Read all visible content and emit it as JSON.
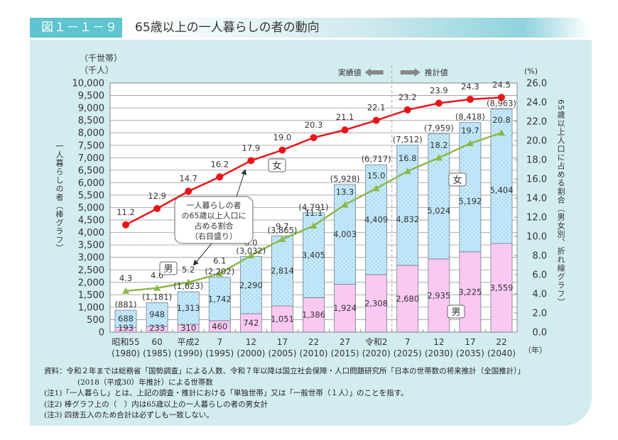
{
  "figure": {
    "number": "図１－１－９",
    "title": "65歳以上の一人暮らしの者の動向"
  },
  "chart_data": {
    "type": "bar",
    "subtype": "stacked-bar-with-lines",
    "title": "65歳以上の一人暮らしの者の動向",
    "left_axis": {
      "unit_labels": [
        "（千世帯）",
        "（千人）"
      ],
      "label": "一人暮らしの者（棒グラフ）",
      "ylim": [
        0,
        10000
      ],
      "ticks": [
        "0",
        "500",
        "1,000",
        "1,500",
        "2,000",
        "2,500",
        "3,000",
        "3,500",
        "4,000",
        "4,500",
        "5,000",
        "5,500",
        "6,000",
        "6,500",
        "7,000",
        "7,500",
        "8,000",
        "8,500",
        "9,000",
        "9,500",
        "10,000"
      ]
    },
    "right_axis": {
      "unit_label": "(%)",
      "label": "65歳以上人口に占める割合（男女別、折れ線グラフ）",
      "ylim": [
        0,
        26
      ],
      "ticks": [
        "0.0",
        "2.0",
        "4.0",
        "6.0",
        "8.0",
        "10.0",
        "12.0",
        "14.0",
        "16.0",
        "18.0",
        "20.0",
        "22.0",
        "24.0",
        "26.0"
      ]
    },
    "x_unit": "（年）",
    "categories": [
      {
        "era": "昭和55",
        "year": "(1980)"
      },
      {
        "era": "60",
        "year": "(1985)"
      },
      {
        "era": "平成2",
        "year": "(1990)"
      },
      {
        "era": "7",
        "year": "(1995)"
      },
      {
        "era": "12",
        "year": "(2000)"
      },
      {
        "era": "17",
        "year": "(2005)"
      },
      {
        "era": "22",
        "year": "(2010)"
      },
      {
        "era": "27",
        "year": "(2015)"
      },
      {
        "era": "令和2",
        "year": "(2020)"
      },
      {
        "era": "7",
        "year": "(2025)"
      },
      {
        "era": "12",
        "year": "(2030)"
      },
      {
        "era": "17",
        "year": "(2035)"
      },
      {
        "era": "22",
        "year": "(2040)"
      }
    ],
    "series": [
      {
        "name": "男（棒）",
        "kind": "bar",
        "axis": "left",
        "color": "#fbc8f2",
        "values": [
          193,
          233,
          310,
          460,
          742,
          1051,
          1386,
          1924,
          2308,
          2680,
          2935,
          3225,
          3559
        ],
        "labels": [
          "193",
          "233",
          "310",
          "460",
          "742",
          "1,051",
          "1,386",
          "1,924",
          "2,308",
          "2,680",
          "2,935",
          "3,225",
          "3,559"
        ]
      },
      {
        "name": "女（棒）",
        "kind": "bar",
        "axis": "left",
        "color": "#c4e8fa",
        "values": [
          688,
          948,
          1313,
          1742,
          2290,
          2814,
          3405,
          4003,
          4409,
          4832,
          5024,
          5192,
          5404
        ],
        "labels": [
          "688",
          "948",
          "1,313",
          "1,742",
          "2,290",
          "2,814",
          "3,405",
          "4,003",
          "4,409",
          "4,832",
          "5,024",
          "5,192",
          "5,404"
        ]
      },
      {
        "name": "男女計",
        "kind": "total",
        "axis": "left",
        "values": [
          881,
          1181,
          1623,
          2202,
          3032,
          3865,
          4791,
          5928,
          6717,
          7512,
          7959,
          8418,
          8963
        ],
        "labels": [
          "(881)",
          "(1,181)",
          "(1,623)",
          "(2,202)",
          "(3,032)",
          "(3,865)",
          "(4,791)",
          "(5,928)",
          "(6,717)",
          "(7,512)",
          "(7,959)",
          "(8,418)",
          "(8,963)"
        ]
      },
      {
        "name": "女（割合）",
        "kind": "line",
        "axis": "right",
        "color": "#e8161b",
        "marker": "circle",
        "values": [
          11.2,
          12.9,
          14.7,
          16.2,
          17.9,
          19.0,
          20.3,
          21.1,
          22.1,
          23.2,
          23.9,
          24.3,
          24.5
        ],
        "labels": [
          "11.2",
          "12.9",
          "14.7",
          "16.2",
          "17.9",
          "19.0",
          "20.3",
          "21.1",
          "22.1",
          "23.2",
          "23.9",
          "24.3",
          "24.5"
        ]
      },
      {
        "name": "男（割合）",
        "kind": "line",
        "axis": "right",
        "color": "#8cb84a",
        "marker": "triangle",
        "values": [
          4.3,
          4.6,
          5.2,
          6.1,
          8.0,
          9.7,
          11.1,
          13.3,
          15.0,
          16.8,
          18.2,
          19.7,
          20.8
        ],
        "labels": [
          "4.3",
          "4.6",
          "5.2",
          "6.1",
          "8.0",
          "9.7",
          "11.1",
          "13.3",
          "15.0",
          "16.8",
          "18.2",
          "19.7",
          "20.8"
        ]
      }
    ],
    "legend_tags": {
      "female_line": "女",
      "male_line": "男",
      "female_bar": "女",
      "male_bar": "男"
    },
    "callout": [
      "一人暮らしの者",
      "の65歳以上人口に",
      "占める割合",
      "（右目盛り）"
    ],
    "period_labels": {
      "actual": "実績値",
      "projected": "推計値"
    },
    "grid": true
  },
  "notes": {
    "source_line1": "資料：令和２年までは総務省「国勢調査」による人数、令和７年以降は国立社会保障・人口問題研究所「日本の世帯数の将来推計（全国推計）」",
    "source_line2": "(2018（平成30）年推計）による世帯数",
    "note1": "(注1)「一人暮らし」とは、上記の調査・推計における「単独世帯」又は「一般世帯（１人）」のことを指す。",
    "note2": "(注2) 棒グラフ上の（　）内は65歳以上の一人暮らしの者の男女計",
    "note3": "(注3) 四捨五入のため合計は必ずしも一致しない。"
  }
}
